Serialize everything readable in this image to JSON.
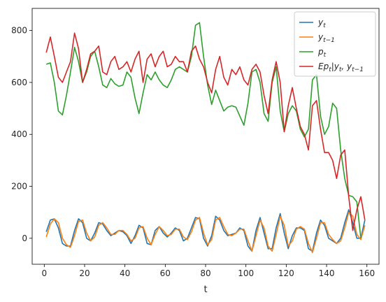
{
  "chart_data": {
    "type": "line",
    "xlabel": "t",
    "ylabel": "",
    "xlim": [
      -6,
      166
    ],
    "ylim": [
      -100,
      885
    ],
    "xticks": [
      0,
      20,
      40,
      60,
      80,
      100,
      120,
      140,
      160
    ],
    "yticks": [
      0,
      200,
      400,
      600,
      800
    ],
    "legend_placement": "top-right",
    "series": [
      {
        "name": "y_t",
        "legend_main": "y",
        "legend_sub": "t",
        "color": "#1f77b4",
        "x": [
          1,
          3,
          5,
          7,
          9,
          11,
          13,
          15,
          17,
          19,
          21,
          23,
          25,
          27,
          29,
          31,
          33,
          35,
          37,
          39,
          41,
          43,
          45,
          47,
          49,
          51,
          53,
          55,
          57,
          59,
          61,
          63,
          65,
          67,
          69,
          71,
          73,
          75,
          77,
          79,
          81,
          83,
          85,
          87,
          89,
          91,
          93,
          95,
          97,
          99,
          101,
          103,
          105,
          107,
          109,
          111,
          113,
          115,
          117,
          119,
          121,
          123,
          125,
          127,
          129,
          131,
          133,
          135,
          137,
          139,
          141,
          143,
          145,
          147,
          149,
          151,
          153,
          155,
          157,
          159
        ],
        "values": [
          25,
          70,
          75,
          40,
          -20,
          -30,
          -30,
          30,
          75,
          60,
          0,
          -10,
          20,
          60,
          55,
          30,
          10,
          20,
          30,
          25,
          10,
          -20,
          10,
          50,
          40,
          -20,
          -25,
          30,
          45,
          20,
          5,
          20,
          40,
          30,
          -10,
          0,
          40,
          80,
          75,
          0,
          -30,
          10,
          85,
          70,
          30,
          10,
          15,
          20,
          40,
          30,
          -30,
          -50,
          30,
          80,
          20,
          -40,
          -40,
          40,
          95,
          20,
          -40,
          10,
          40,
          40,
          30,
          -40,
          -50,
          20,
          70,
          50,
          0,
          -10,
          -20,
          0,
          60,
          110,
          60,
          0,
          0,
          70
        ]
      },
      {
        "name": "y_{t-1}",
        "legend_main": "y",
        "legend_sub": "t−1",
        "color": "#ff7f0e",
        "x": [
          1,
          3,
          5,
          7,
          9,
          11,
          13,
          15,
          17,
          19,
          21,
          23,
          25,
          27,
          29,
          31,
          33,
          35,
          37,
          39,
          41,
          43,
          45,
          47,
          49,
          51,
          53,
          55,
          57,
          59,
          61,
          63,
          65,
          67,
          69,
          71,
          73,
          75,
          77,
          79,
          81,
          83,
          85,
          87,
          89,
          91,
          93,
          95,
          97,
          99,
          101,
          103,
          105,
          107,
          109,
          111,
          113,
          115,
          117,
          119,
          121,
          123,
          125,
          127,
          129,
          131,
          133,
          135,
          137,
          139,
          141,
          143,
          145,
          147,
          149,
          151,
          153,
          155,
          157,
          159
        ],
        "values": [
          5,
          55,
          75,
          60,
          0,
          -25,
          -35,
          10,
          65,
          70,
          20,
          -10,
          5,
          50,
          60,
          40,
          15,
          15,
          30,
          30,
          15,
          -10,
          0,
          40,
          45,
          0,
          -25,
          15,
          45,
          30,
          10,
          15,
          35,
          35,
          5,
          -5,
          25,
          70,
          80,
          20,
          -25,
          -5,
          70,
          80,
          45,
          15,
          10,
          20,
          35,
          35,
          -10,
          -50,
          10,
          70,
          40,
          -30,
          -50,
          15,
          85,
          50,
          -30,
          -10,
          35,
          45,
          35,
          -20,
          -55,
          0,
          60,
          60,
          15,
          -5,
          -20,
          -10,
          40,
          100,
          85,
          15,
          -5,
          50
        ]
      },
      {
        "name": "p_t",
        "legend_main": "p",
        "legend_sub": "t",
        "color": "#2ca02c",
        "x": [
          1,
          3,
          5,
          7,
          9,
          11,
          13,
          15,
          17,
          19,
          21,
          23,
          25,
          27,
          29,
          31,
          33,
          35,
          37,
          39,
          41,
          43,
          45,
          47,
          49,
          51,
          53,
          55,
          57,
          59,
          61,
          63,
          65,
          67,
          69,
          71,
          73,
          75,
          77,
          79,
          81,
          83,
          85,
          87,
          89,
          91,
          93,
          95,
          97,
          99,
          101,
          103,
          105,
          107,
          109,
          111,
          113,
          115,
          117,
          119,
          121,
          123,
          125,
          127,
          129,
          131,
          133,
          135,
          137,
          139,
          141,
          143,
          145,
          147,
          149,
          151,
          153,
          155,
          157
        ],
        "values": [
          670,
          675,
          600,
          490,
          475,
          550,
          640,
          735,
          680,
          600,
          640,
          700,
          720,
          660,
          590,
          580,
          615,
          595,
          585,
          590,
          640,
          620,
          540,
          480,
          560,
          630,
          610,
          640,
          610,
          590,
          580,
          610,
          650,
          660,
          650,
          640,
          700,
          820,
          830,
          700,
          590,
          515,
          570,
          530,
          490,
          505,
          510,
          505,
          470,
          435,
          520,
          640,
          650,
          600,
          480,
          450,
          600,
          660,
          490,
          410,
          480,
          510,
          490,
          420,
          390,
          420,
          610,
          630,
          470,
          400,
          430,
          520,
          500,
          340,
          230,
          165,
          160,
          140,
          0
        ]
      },
      {
        "name": "Ep_t|y_t, y_{t-1}",
        "legend_main": "Ep",
        "legend_sub": "t",
        "legend_tail": "|y",
        "legend_sub2": "t",
        "legend_tail2": ", y",
        "legend_sub3": "t−1",
        "color": "#d62728",
        "x": [
          1,
          3,
          5,
          7,
          9,
          11,
          13,
          15,
          17,
          19,
          21,
          23,
          25,
          27,
          29,
          31,
          33,
          35,
          37,
          39,
          41,
          43,
          45,
          47,
          49,
          51,
          53,
          55,
          57,
          59,
          61,
          63,
          65,
          67,
          69,
          71,
          73,
          75,
          77,
          79,
          81,
          83,
          85,
          87,
          89,
          91,
          93,
          95,
          97,
          99,
          101,
          103,
          105,
          107,
          109,
          111,
          113,
          115,
          117,
          119,
          121,
          123,
          125,
          127,
          129,
          131,
          133,
          135,
          137,
          139,
          141,
          143,
          145,
          147,
          149,
          151,
          153,
          155,
          157,
          159
        ],
        "values": [
          715,
          775,
          700,
          620,
          600,
          640,
          680,
          790,
          730,
          600,
          650,
          710,
          720,
          740,
          640,
          630,
          680,
          700,
          650,
          660,
          680,
          640,
          690,
          720,
          600,
          690,
          710,
          660,
          700,
          720,
          660,
          670,
          700,
          680,
          680,
          640,
          720,
          740,
          690,
          660,
          600,
          560,
          650,
          700,
          620,
          590,
          650,
          630,
          660,
          610,
          590,
          650,
          670,
          640,
          550,
          480,
          610,
          680,
          600,
          410,
          510,
          580,
          500,
          430,
          400,
          340,
          510,
          530,
          420,
          330,
          330,
          300,
          230,
          320,
          340,
          160,
          30,
          110,
          160,
          70
        ]
      }
    ]
  }
}
